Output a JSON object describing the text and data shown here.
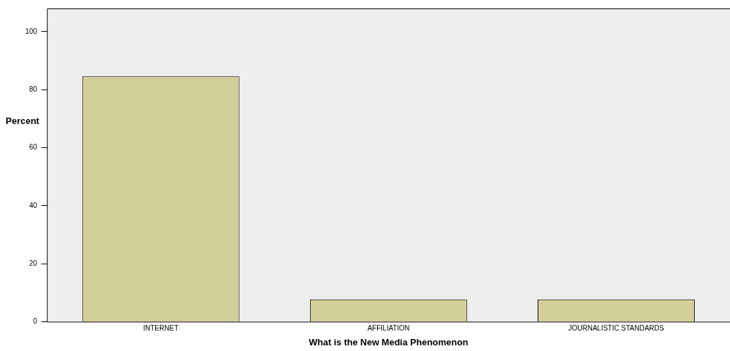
{
  "chart_data": {
    "type": "bar",
    "xlabel": "What is the New Media Phenomenon",
    "ylabel": "Percent",
    "categories": [
      "INTERNET",
      "AFFILIATION",
      "JOURNALISTIC STANDARDS"
    ],
    "values": [
      84.6,
      7.7,
      7.7
    ],
    "color": "#d3cf98",
    "ylim": [
      0,
      108
    ],
    "yticks": [
      0,
      20,
      40,
      60,
      80,
      100
    ],
    "grid": false,
    "legend": false
  }
}
